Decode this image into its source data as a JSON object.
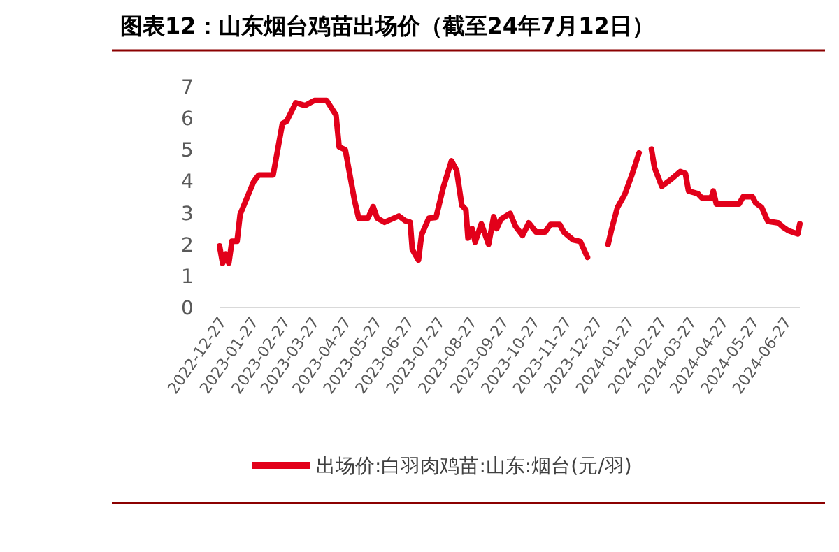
{
  "chart_data": {
    "type": "line",
    "title": "图表12：山东烟台鸡苗出场价（截至24年7月12日）",
    "legend": "bottom",
    "grid": false,
    "marker": "none",
    "line_style": "solid",
    "xlim": [
      "2022-12-27",
      "2024-07-12"
    ],
    "xticks": [
      "2022-12-27",
      "2023-01-27",
      "2023-02-27",
      "2023-03-27",
      "2023-04-27",
      "2023-05-27",
      "2023-06-27",
      "2023-07-27",
      "2023-08-27",
      "2023-09-27",
      "2023-10-27",
      "2023-11-27",
      "2023-12-27",
      "2024-01-27",
      "2024-02-27",
      "2024-03-27",
      "2024-04-27",
      "2024-05-27",
      "2024-06-27"
    ],
    "ylim": [
      0,
      7
    ],
    "yticks": [
      0,
      1,
      2,
      3,
      4,
      5,
      6,
      7
    ],
    "series": [
      {
        "name": "出场价:白羽肉鸡苗:山东:烟台(元/羽)",
        "color": "#e2001a",
        "x": [
          "2022-12-27",
          "2022-12-30",
          "2023-01-02",
          "2023-01-05",
          "2023-01-08",
          "2023-01-13",
          "2023-01-16",
          "2023-01-29",
          "2023-02-03",
          "2023-02-17",
          "2023-02-26",
          "2023-03-02",
          "2023-03-11",
          "2023-03-20",
          "2023-03-29",
          "2023-04-10",
          "2023-04-19",
          "2023-04-22",
          "2023-04-28",
          "2023-05-07",
          "2023-05-11",
          "2023-05-20",
          "2023-05-25",
          "2023-05-29",
          "2023-06-05",
          "2023-06-12",
          "2023-06-19",
          "2023-06-25",
          "2023-06-30",
          "2023-07-02",
          "2023-07-08",
          "2023-07-11",
          "2023-07-18",
          "2023-07-25",
          "2023-08-01",
          "2023-08-09",
          "2023-08-14",
          "2023-08-19",
          "2023-08-23",
          "2023-08-25",
          "2023-08-29",
          "2023-09-01",
          "2023-09-07",
          "2023-09-14",
          "2023-09-19",
          "2023-09-22",
          "2023-09-26",
          "2023-10-05",
          "2023-10-10",
          "2023-10-17",
          "2023-10-23",
          "2023-10-30",
          "2023-11-08",
          "2023-11-13",
          "2023-11-22",
          "2023-11-26",
          "2023-12-05",
          "2023-12-12",
          "2023-12-19",
          "2023-12-28",
          "2024-01-08",
          "2024-01-11",
          "2024-01-17",
          "2024-01-24",
          "2024-01-31",
          "2024-02-07",
          "2024-02-12",
          "2024-02-19",
          "2024-02-22",
          "2024-02-29",
          "2024-03-09",
          "2024-03-18",
          "2024-03-23",
          "2024-03-26",
          "2024-04-04",
          "2024-04-08",
          "2024-04-17",
          "2024-04-19",
          "2024-04-22",
          "2024-05-14",
          "2024-05-18",
          "2024-05-27",
          "2024-05-30",
          "2024-06-05",
          "2024-06-11",
          "2024-06-21",
          "2024-06-26",
          "2024-07-01",
          "2024-07-10",
          "2024-07-12"
        ],
        "values": [
          1.95,
          1.4,
          1.7,
          1.4,
          2.1,
          2.1,
          2.95,
          3.98,
          4.2,
          4.2,
          5.83,
          5.9,
          6.49,
          6.4,
          6.56,
          6.56,
          6.1,
          5.09,
          5.0,
          3.39,
          2.83,
          2.83,
          3.2,
          2.83,
          2.7,
          2.8,
          2.9,
          2.75,
          2.7,
          1.84,
          1.5,
          2.3,
          2.83,
          2.85,
          3.8,
          4.65,
          4.35,
          3.24,
          3.1,
          2.2,
          2.5,
          2.07,
          2.65,
          2.0,
          2.88,
          2.5,
          2.8,
          2.98,
          2.58,
          2.28,
          2.68,
          2.39,
          2.39,
          2.63,
          2.63,
          2.39,
          2.14,
          2.09,
          1.59,
          null,
          2.0,
          2.43,
          3.17,
          3.57,
          4.2,
          4.9,
          null,
          5.02,
          4.43,
          3.84,
          4.06,
          4.31,
          4.25,
          3.69,
          3.61,
          3.47,
          3.47,
          3.69,
          3.28,
          3.28,
          3.51,
          3.51,
          3.32,
          3.17,
          2.73,
          2.68,
          2.54,
          2.43,
          2.33,
          2.65
        ]
      }
    ]
  }
}
